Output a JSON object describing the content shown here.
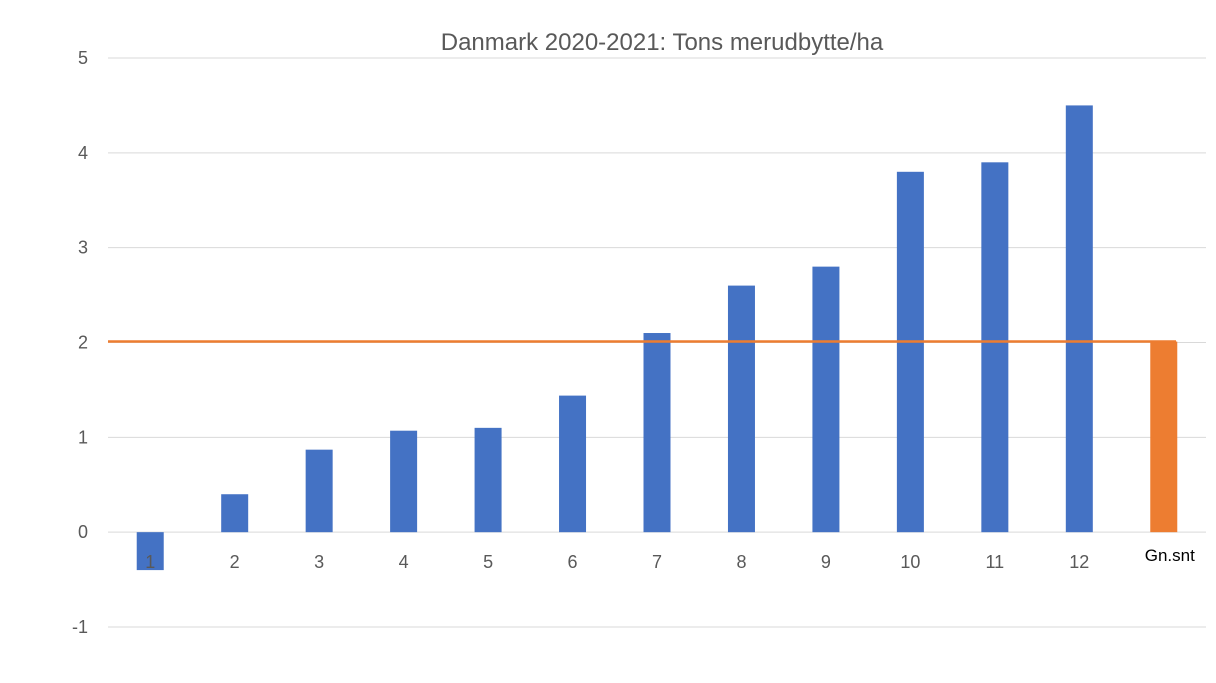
{
  "chart_data": {
    "type": "bar",
    "title": "Danmark 2020-2021: Tons merudbytte/ha",
    "categories": [
      "1",
      "2",
      "3",
      "4",
      "5",
      "6",
      "7",
      "8",
      "9",
      "10",
      "11",
      "12",
      "Gn.snt"
    ],
    "series": [
      {
        "values": [
          -0.4,
          0.4,
          0.87,
          1.07,
          1.1,
          1.44,
          2.1,
          2.6,
          2.8,
          3.8,
          3.9,
          4.5,
          null
        ]
      },
      {
        "values": [
          null,
          null,
          null,
          null,
          null,
          null,
          null,
          null,
          null,
          null,
          null,
          null,
          2.01
        ]
      }
    ],
    "average_line": 2.01,
    "ylim": [
      -1,
      5
    ],
    "yticks": [
      "5",
      "4",
      "3",
      "2",
      "1",
      "0",
      "-1"
    ],
    "grid": true,
    "legend": "none",
    "xlabel": "",
    "ylabel": ""
  },
  "colors": {
    "bar_blue": "#4472c4",
    "bar_orange": "#ed7d31",
    "grid": "#d9d9d9",
    "text": "#595959"
  }
}
